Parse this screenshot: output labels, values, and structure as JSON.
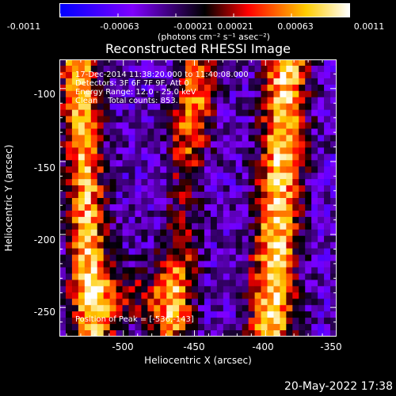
{
  "colorbar": {
    "tick_labels": [
      "-0.0011",
      "-0.00063",
      "-0.00021",
      "0.00021",
      "0.00063",
      "0.0011"
    ],
    "units": "(photons cm⁻² s⁻¹ asec⁻²)"
  },
  "title": "Reconstructed RHESSI Image",
  "info": {
    "time": "17-Dec-2014 11:38:20.000 to 11:40:08.000",
    "detectors": "Detectors: 3F 6F 7F 9F, Att 0",
    "energy": "Energy Range: 12.0 - 25.0 keV",
    "clean": "Clean    Total counts: 853.",
    "peak": "Position of Peak = [-536,-143]"
  },
  "chart_data": {
    "type": "heatmap",
    "title": "Reconstructed RHESSI Image",
    "xlabel": "Heliocentric X (arcsec)",
    "ylabel": "Heliocentric Y (arcsec)",
    "x_ticks": [
      "-500",
      "-450",
      "-400",
      "-350"
    ],
    "y_ticks": [
      "-100",
      "-150",
      "-200",
      "-250"
    ],
    "xlim": [
      -545,
      -350
    ],
    "ylim": [
      -270,
      -80
    ],
    "color_range": [
      -0.0011,
      0.0011
    ],
    "colormap": [
      "#0000ff",
      "#7f00ff",
      "#000000",
      "#ff0000",
      "#ffcc00",
      "#ffffff"
    ],
    "peak_position": [
      -536,
      -143
    ]
  },
  "footer": {
    "datestamp": "20-May-2022 17:38"
  }
}
